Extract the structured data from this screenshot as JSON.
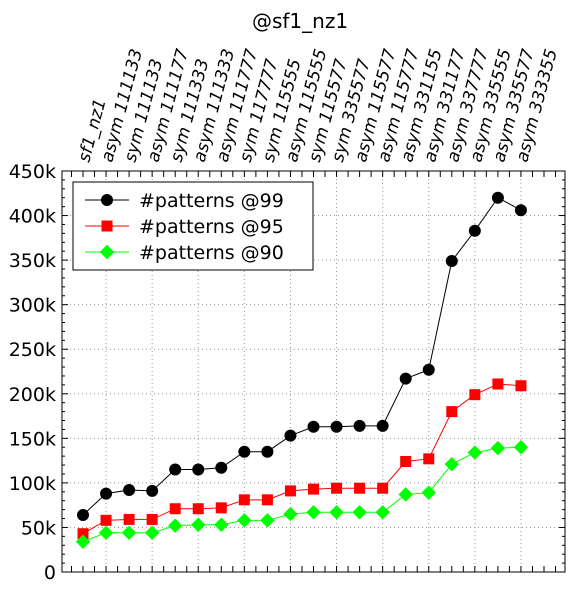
{
  "chart_data": {
    "type": "line",
    "title": "@sf1_nz1",
    "xlabel": "",
    "ylabel": "",
    "categories": [
      "sf1_nz1",
      "asym 111133",
      "sym 111133",
      "asym 111177",
      "sym 111333",
      "asym 111333",
      "asym 111777",
      "sym 117777",
      "sym 115555",
      "asym 115555",
      "sym 115577",
      "sym 335577",
      "asym 115577",
      "asym 115777",
      "asym 331155",
      "asym 331177",
      "asym 337777",
      "asym 335555",
      "asym 335577",
      "asym 333355"
    ],
    "ylim": [
      0,
      450000
    ],
    "yticks": [
      0,
      50000,
      100000,
      150000,
      200000,
      250000,
      300000,
      350000,
      400000,
      450000
    ],
    "ytick_labels": [
      "0",
      "50k",
      "100k",
      "150k",
      "200k",
      "250k",
      "300k",
      "350k",
      "400k",
      "450k"
    ],
    "grid": true,
    "legend_position": "top-left",
    "series": [
      {
        "name": "#patterns @99",
        "color": "#000000",
        "marker": "circle",
        "values": [
          64000,
          88000,
          92000,
          91000,
          115000,
          115000,
          117000,
          135000,
          135000,
          153000,
          163000,
          163000,
          164000,
          164000,
          217000,
          227000,
          349000,
          383000,
          420000,
          406000
        ]
      },
      {
        "name": "#patterns @95",
        "color": "#ff0000",
        "marker": "square",
        "values": [
          43000,
          58000,
          59000,
          59000,
          71000,
          71000,
          72000,
          81000,
          81000,
          91000,
          93000,
          94000,
          94000,
          94000,
          124000,
          127000,
          180000,
          199000,
          211000,
          209000
        ]
      },
      {
        "name": "#patterns @90",
        "color": "#00ff00",
        "marker": "diamond",
        "values": [
          34000,
          44000,
          44000,
          44000,
          52000,
          53000,
          53000,
          58000,
          58000,
          65000,
          67000,
          67000,
          67000,
          67000,
          87000,
          89000,
          121000,
          134000,
          139000,
          140000
        ]
      }
    ]
  }
}
